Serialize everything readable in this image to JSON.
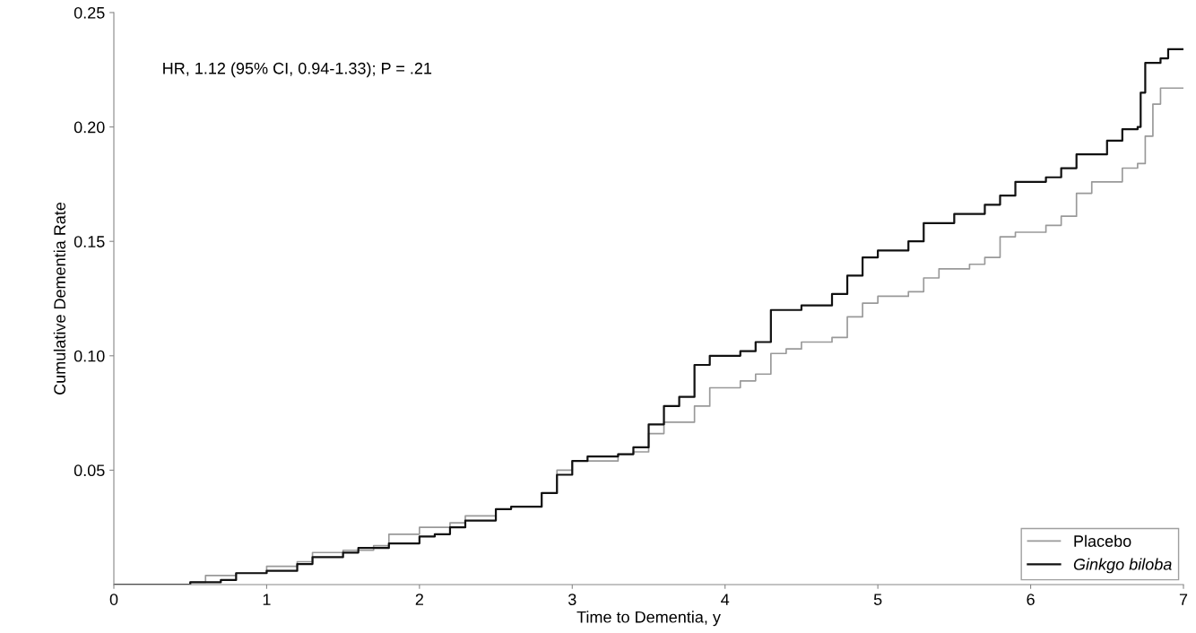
{
  "chart_data": {
    "type": "step",
    "xlabel": "Time to Dementia, y",
    "ylabel": "Cumulative Dementia Rate",
    "annotations": [
      "HR, 1.12 (95% CI, 0.94-1.33); P = .21"
    ],
    "xlim": [
      0,
      7
    ],
    "xticks": [
      0,
      1,
      2,
      3,
      4,
      5,
      6,
      7
    ],
    "ylim": [
      0,
      0.25
    ],
    "yticks": [
      0.05,
      {
        "value": 0.1,
        "label": "0.10"
      },
      {
        "value": 0.15,
        "label": "0.15"
      },
      {
        "value": 0.2,
        "label": "0.20"
      },
      0.25
    ],
    "legend": "bottom right",
    "grid": false,
    "marker": "none",
    "line_style": "solid",
    "series": [
      {
        "name": "Placebo",
        "color": "#999999",
        "x": [
          0,
          0.5,
          0.6,
          0.8,
          1.0,
          1.2,
          1.3,
          1.5,
          1.7,
          1.8,
          2.0,
          2.2,
          2.3,
          2.5,
          2.6,
          2.8,
          2.9,
          3.0,
          3.3,
          3.4,
          3.5,
          3.6,
          3.8,
          3.9,
          4.1,
          4.2,
          4.3,
          4.4,
          4.5,
          4.7,
          4.8,
          4.9,
          5.0,
          5.2,
          5.3,
          5.4,
          5.6,
          5.7,
          5.8,
          5.9,
          6.1,
          6.2,
          6.3,
          6.4,
          6.55,
          6.6,
          6.7,
          6.75,
          6.8,
          6.85,
          7.0
        ],
        "values": [
          0,
          0.001,
          0.004,
          0.005,
          0.008,
          0.01,
          0.014,
          0.015,
          0.017,
          0.022,
          0.025,
          0.027,
          0.03,
          0.033,
          0.034,
          0.04,
          0.05,
          0.054,
          0.057,
          0.058,
          0.066,
          0.071,
          0.078,
          0.086,
          0.089,
          0.092,
          0.101,
          0.103,
          0.106,
          0.108,
          0.117,
          0.123,
          0.126,
          0.128,
          0.134,
          0.138,
          0.14,
          0.143,
          0.152,
          0.154,
          0.157,
          0.161,
          0.171,
          0.176,
          0.176,
          0.182,
          0.184,
          0.196,
          0.21,
          0.217,
          0.217
        ]
      },
      {
        "name": "Ginkgo biloba",
        "color": "#111111",
        "x": [
          0,
          0.5,
          0.7,
          0.8,
          1.0,
          1.2,
          1.3,
          1.5,
          1.6,
          1.8,
          2.0,
          2.1,
          2.2,
          2.3,
          2.5,
          2.6,
          2.8,
          2.9,
          3.0,
          3.1,
          3.3,
          3.4,
          3.5,
          3.6,
          3.7,
          3.8,
          3.9,
          4.1,
          4.2,
          4.3,
          4.5,
          4.7,
          4.8,
          4.9,
          5.0,
          5.2,
          5.3,
          5.5,
          5.7,
          5.8,
          5.9,
          6.1,
          6.2,
          6.3,
          6.5,
          6.6,
          6.7,
          6.72,
          6.75,
          6.85,
          6.9,
          7.0
        ],
        "values": [
          0,
          0.001,
          0.002,
          0.005,
          0.006,
          0.009,
          0.012,
          0.014,
          0.016,
          0.018,
          0.021,
          0.022,
          0.025,
          0.028,
          0.033,
          0.034,
          0.04,
          0.048,
          0.054,
          0.056,
          0.057,
          0.06,
          0.07,
          0.078,
          0.082,
          0.096,
          0.1,
          0.102,
          0.106,
          0.12,
          0.122,
          0.127,
          0.135,
          0.143,
          0.146,
          0.15,
          0.158,
          0.162,
          0.166,
          0.17,
          0.176,
          0.178,
          0.182,
          0.188,
          0.194,
          0.199,
          0.2,
          0.215,
          0.228,
          0.23,
          0.234,
          0.234
        ]
      }
    ]
  }
}
